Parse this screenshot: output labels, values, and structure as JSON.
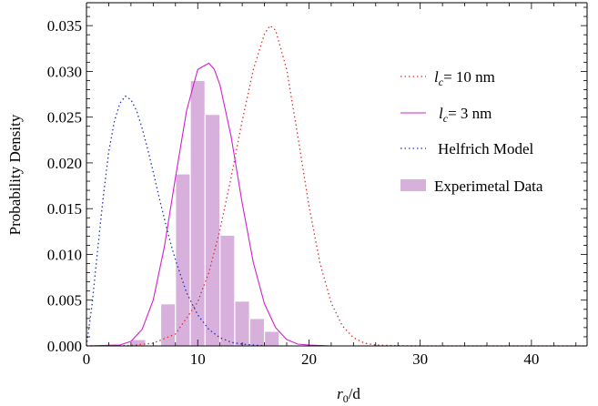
{
  "chart_data": {
    "type": "bar",
    "title": "",
    "xlabel_var": "r",
    "xlabel_sub": "0",
    "xlabel_rest": "/d",
    "ylabel": "Probability Density",
    "xlim": [
      0,
      45
    ],
    "ylim": [
      0,
      0.0375
    ],
    "x_ticks": [
      0,
      10,
      20,
      30,
      40
    ],
    "x_tick_labels": [
      "0",
      "10",
      "20",
      "30",
      "40"
    ],
    "y_ticks": [
      0,
      0.005,
      0.01,
      0.015,
      0.02,
      0.025,
      0.03,
      0.035
    ],
    "y_tick_labels": [
      "0.000",
      "0.005",
      "0.010",
      "0.015",
      "0.020",
      "0.025",
      "0.030",
      "0.035"
    ],
    "grid": false,
    "legend_placement": "right",
    "histogram": {
      "name": "Experimetal Data",
      "color": "#d8b0dc",
      "bin_width": 1.33,
      "bins": [
        {
          "x0": 4.0,
          "value": 0.0007
        },
        {
          "x0": 5.33,
          "value": 0.0
        },
        {
          "x0": 6.67,
          "value": 0.0046
        },
        {
          "x0": 8.0,
          "value": 0.0188
        },
        {
          "x0": 9.33,
          "value": 0.029
        },
        {
          "x0": 10.67,
          "value": 0.0253
        },
        {
          "x0": 12.0,
          "value": 0.0121
        },
        {
          "x0": 13.33,
          "value": 0.0049
        },
        {
          "x0": 14.67,
          "value": 0.003
        },
        {
          "x0": 16.0,
          "value": 0.0016
        },
        {
          "x0": 17.33,
          "value": 0.0
        }
      ]
    },
    "series": [
      {
        "name_var": "l",
        "name_sub": "c",
        "name_rest": "= 10 nm",
        "color": "#e03030",
        "style": "dotted",
        "x": [
          0,
          4,
          6,
          8,
          10,
          11,
          12,
          13,
          14,
          15,
          16,
          16.5,
          17,
          18,
          19,
          20,
          21,
          22,
          23,
          24,
          25,
          26,
          28,
          30,
          35,
          45
        ],
        "y": [
          0,
          5e-05,
          0.0003,
          0.0013,
          0.0048,
          0.008,
          0.0127,
          0.0184,
          0.0246,
          0.0302,
          0.0341,
          0.035,
          0.0345,
          0.0302,
          0.0229,
          0.0153,
          0.009,
          0.0047,
          0.0022,
          0.0009,
          0.0003,
          0.0001,
          2e-05,
          0,
          0,
          0
        ]
      },
      {
        "name_var": "l",
        "name_sub": "c",
        "name_rest": "= 3 nm",
        "color": "#d020d0",
        "style": "solid",
        "x": [
          0,
          3,
          4,
          5,
          6,
          7,
          8,
          9,
          10,
          11,
          11.5,
          12,
          13,
          14,
          15,
          16,
          17,
          18,
          19,
          20,
          22,
          25,
          30,
          45
        ],
        "y": [
          0,
          0.0001,
          0.0005,
          0.0018,
          0.005,
          0.0108,
          0.0184,
          0.0257,
          0.0302,
          0.0309,
          0.0302,
          0.0285,
          0.0229,
          0.0156,
          0.0091,
          0.0046,
          0.002,
          0.0007,
          0.0002,
          0.0001,
          0,
          0,
          0,
          0
        ]
      },
      {
        "name": "Helfrich Model",
        "color": "#2030c0",
        "style": "dotted",
        "x": [
          0,
          0.5,
          1,
          1.5,
          2,
          2.5,
          3,
          3.5,
          4,
          4.5,
          5,
          5.5,
          6,
          6.5,
          7,
          7.5,
          8,
          9,
          10,
          11,
          12,
          13,
          14,
          15,
          16
        ],
        "y": [
          0,
          0.0045,
          0.0104,
          0.0162,
          0.0212,
          0.0245,
          0.0265,
          0.0273,
          0.0269,
          0.0257,
          0.0238,
          0.0215,
          0.019,
          0.0164,
          0.0139,
          0.0115,
          0.0094,
          0.0058,
          0.0034,
          0.0018,
          0.0009,
          0.0004,
          0.0002,
          0.0001,
          0
        ]
      }
    ]
  }
}
